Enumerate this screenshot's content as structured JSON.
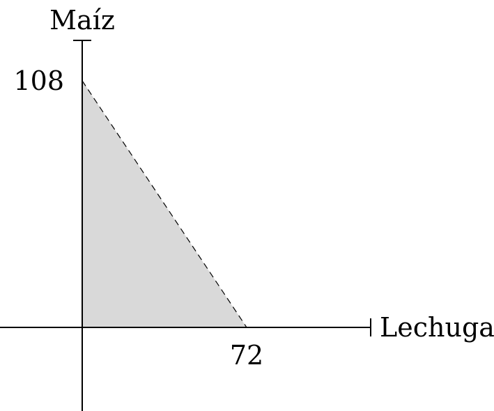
{
  "chart_data": {
    "type": "area",
    "title": "",
    "xlabel": "Lechuga",
    "ylabel": "Maíz",
    "x_intercept": 72,
    "y_intercept": 108,
    "x_tick_labels": [
      "72"
    ],
    "y_tick_labels": [
      "108"
    ],
    "xlim": [
      -20,
      70
    ],
    "ylim": [
      -20,
      125
    ],
    "points": [
      {
        "x": 0,
        "y": 108
      },
      {
        "x": 72,
        "y": 0
      }
    ],
    "feasible_region": [
      {
        "x": 0,
        "y": 0
      },
      {
        "x": 0,
        "y": 108
      },
      {
        "x": 72,
        "y": 0
      }
    ],
    "frontier_style": "dashed",
    "region_fill": "#d9d9d9",
    "grid": false
  }
}
